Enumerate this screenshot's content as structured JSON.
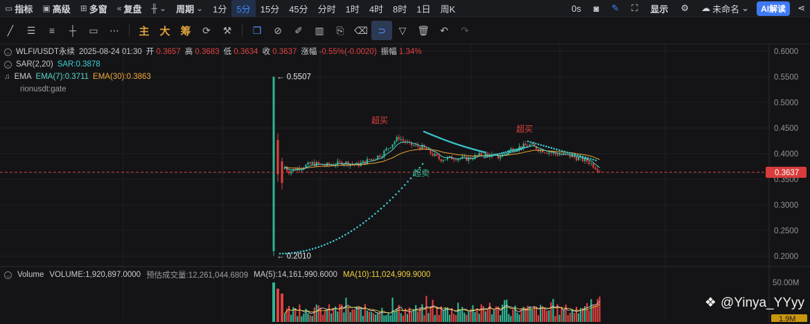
{
  "topbar": {
    "items": [
      {
        "label": "指标",
        "icon": "chart-indicator-icon"
      },
      {
        "label": "高级",
        "icon": "calendar-icon"
      },
      {
        "label": "多窗",
        "icon": "grid-icon"
      },
      {
        "label": "复盘",
        "icon": "rewind-icon"
      },
      {
        "label": "",
        "icon": "candle-type-icon"
      },
      {
        "label": "周期",
        "icon": "chevron-down-icon"
      }
    ],
    "intervals": [
      "1分",
      "5分",
      "15分",
      "45分",
      "分时",
      "1时",
      "4时",
      "8时",
      "1日",
      "周K"
    ],
    "active_interval": "5分",
    "countdown": "0s",
    "display_label": "显示",
    "layout_name": "未命名",
    "ai_button": "AI解读"
  },
  "toolbar2": {
    "text_tools": [
      "主",
      "大",
      "筹"
    ]
  },
  "legend": {
    "symbol": "WLFI/USDT永续",
    "datetime": "2025-08-24 01:30",
    "open_label": "开",
    "open": "0.3657",
    "high_label": "高",
    "high": "0.3683",
    "low_label": "低",
    "low": "0.3634",
    "close_label": "收",
    "close": "0.3637",
    "change_label": "涨幅",
    "change": "-0.55%(-0.0020)",
    "amp_label": "振幅",
    "amp": "1.34%",
    "sar_name": "SAR(2,20)",
    "sar_value": "SAR:0.3878",
    "ema_name": "EMA",
    "ema7": "EMA(7):0.3711",
    "ema30": "EMA(30):0.3863",
    "source": "rionusdt:gate"
  },
  "volume_legend": {
    "name": "Volume",
    "volume": "VOLUME:1,920,897.0000",
    "estimated": "预估成交量:12,261,044.6809",
    "ma5": "MA(5):14,161,990.6000",
    "ma10": "MA(10):11,024,909.9000"
  },
  "annotations": {
    "overbought": "超买",
    "oversold": "超卖",
    "high_marker": "0.5507",
    "low_marker": "0.2010",
    "current_price": "0.3637"
  },
  "y_axis": {
    "labels": [
      "0.6000",
      "0.5500",
      "0.5000",
      "0.4500",
      "0.4000",
      "0.3500",
      "0.3000",
      "0.2500",
      "0.2000"
    ],
    "min": 0.2,
    "max": 0.6
  },
  "vol_axis": {
    "top": "50.00M",
    "bottom": "1.9M"
  },
  "watermark": "@Yinya_YYyy",
  "colors": {
    "up": "#2fb594",
    "down": "#e0413f",
    "sar": "#3bc9cf",
    "ema7": "#56d6c5",
    "ema30": "#f0a83a",
    "accent": "#3d8bff"
  }
}
